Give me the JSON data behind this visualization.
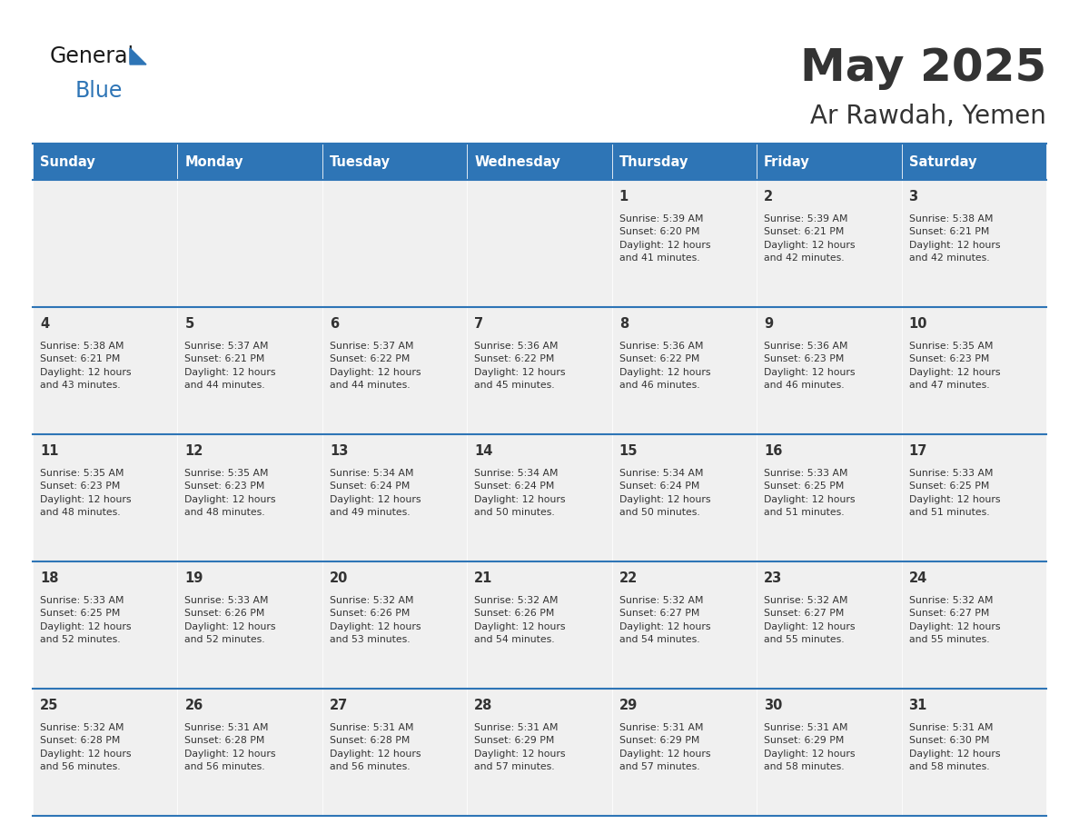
{
  "title": "May 2025",
  "subtitle": "Ar Rawdah, Yemen",
  "header_color": "#2E75B6",
  "header_text_color": "#FFFFFF",
  "cell_bg_color": "#F0F0F0",
  "text_color": "#333333",
  "day_headers": [
    "Sunday",
    "Monday",
    "Tuesday",
    "Wednesday",
    "Thursday",
    "Friday",
    "Saturday"
  ],
  "weeks": [
    [
      {
        "day": "",
        "info": ""
      },
      {
        "day": "",
        "info": ""
      },
      {
        "day": "",
        "info": ""
      },
      {
        "day": "",
        "info": ""
      },
      {
        "day": "1",
        "info": "Sunrise: 5:39 AM\nSunset: 6:20 PM\nDaylight: 12 hours\nand 41 minutes."
      },
      {
        "day": "2",
        "info": "Sunrise: 5:39 AM\nSunset: 6:21 PM\nDaylight: 12 hours\nand 42 minutes."
      },
      {
        "day": "3",
        "info": "Sunrise: 5:38 AM\nSunset: 6:21 PM\nDaylight: 12 hours\nand 42 minutes."
      }
    ],
    [
      {
        "day": "4",
        "info": "Sunrise: 5:38 AM\nSunset: 6:21 PM\nDaylight: 12 hours\nand 43 minutes."
      },
      {
        "day": "5",
        "info": "Sunrise: 5:37 AM\nSunset: 6:21 PM\nDaylight: 12 hours\nand 44 minutes."
      },
      {
        "day": "6",
        "info": "Sunrise: 5:37 AM\nSunset: 6:22 PM\nDaylight: 12 hours\nand 44 minutes."
      },
      {
        "day": "7",
        "info": "Sunrise: 5:36 AM\nSunset: 6:22 PM\nDaylight: 12 hours\nand 45 minutes."
      },
      {
        "day": "8",
        "info": "Sunrise: 5:36 AM\nSunset: 6:22 PM\nDaylight: 12 hours\nand 46 minutes."
      },
      {
        "day": "9",
        "info": "Sunrise: 5:36 AM\nSunset: 6:23 PM\nDaylight: 12 hours\nand 46 minutes."
      },
      {
        "day": "10",
        "info": "Sunrise: 5:35 AM\nSunset: 6:23 PM\nDaylight: 12 hours\nand 47 minutes."
      }
    ],
    [
      {
        "day": "11",
        "info": "Sunrise: 5:35 AM\nSunset: 6:23 PM\nDaylight: 12 hours\nand 48 minutes."
      },
      {
        "day": "12",
        "info": "Sunrise: 5:35 AM\nSunset: 6:23 PM\nDaylight: 12 hours\nand 48 minutes."
      },
      {
        "day": "13",
        "info": "Sunrise: 5:34 AM\nSunset: 6:24 PM\nDaylight: 12 hours\nand 49 minutes."
      },
      {
        "day": "14",
        "info": "Sunrise: 5:34 AM\nSunset: 6:24 PM\nDaylight: 12 hours\nand 50 minutes."
      },
      {
        "day": "15",
        "info": "Sunrise: 5:34 AM\nSunset: 6:24 PM\nDaylight: 12 hours\nand 50 minutes."
      },
      {
        "day": "16",
        "info": "Sunrise: 5:33 AM\nSunset: 6:25 PM\nDaylight: 12 hours\nand 51 minutes."
      },
      {
        "day": "17",
        "info": "Sunrise: 5:33 AM\nSunset: 6:25 PM\nDaylight: 12 hours\nand 51 minutes."
      }
    ],
    [
      {
        "day": "18",
        "info": "Sunrise: 5:33 AM\nSunset: 6:25 PM\nDaylight: 12 hours\nand 52 minutes."
      },
      {
        "day": "19",
        "info": "Sunrise: 5:33 AM\nSunset: 6:26 PM\nDaylight: 12 hours\nand 52 minutes."
      },
      {
        "day": "20",
        "info": "Sunrise: 5:32 AM\nSunset: 6:26 PM\nDaylight: 12 hours\nand 53 minutes."
      },
      {
        "day": "21",
        "info": "Sunrise: 5:32 AM\nSunset: 6:26 PM\nDaylight: 12 hours\nand 54 minutes."
      },
      {
        "day": "22",
        "info": "Sunrise: 5:32 AM\nSunset: 6:27 PM\nDaylight: 12 hours\nand 54 minutes."
      },
      {
        "day": "23",
        "info": "Sunrise: 5:32 AM\nSunset: 6:27 PM\nDaylight: 12 hours\nand 55 minutes."
      },
      {
        "day": "24",
        "info": "Sunrise: 5:32 AM\nSunset: 6:27 PM\nDaylight: 12 hours\nand 55 minutes."
      }
    ],
    [
      {
        "day": "25",
        "info": "Sunrise: 5:32 AM\nSunset: 6:28 PM\nDaylight: 12 hours\nand 56 minutes."
      },
      {
        "day": "26",
        "info": "Sunrise: 5:31 AM\nSunset: 6:28 PM\nDaylight: 12 hours\nand 56 minutes."
      },
      {
        "day": "27",
        "info": "Sunrise: 5:31 AM\nSunset: 6:28 PM\nDaylight: 12 hours\nand 56 minutes."
      },
      {
        "day": "28",
        "info": "Sunrise: 5:31 AM\nSunset: 6:29 PM\nDaylight: 12 hours\nand 57 minutes."
      },
      {
        "day": "29",
        "info": "Sunrise: 5:31 AM\nSunset: 6:29 PM\nDaylight: 12 hours\nand 57 minutes."
      },
      {
        "day": "30",
        "info": "Sunrise: 5:31 AM\nSunset: 6:29 PM\nDaylight: 12 hours\nand 58 minutes."
      },
      {
        "day": "31",
        "info": "Sunrise: 5:31 AM\nSunset: 6:30 PM\nDaylight: 12 hours\nand 58 minutes."
      }
    ]
  ],
  "logo_blue_color": "#2E75B6",
  "line_color": "#2E75B6",
  "fig_width": 11.88,
  "fig_height": 9.18,
  "dpi": 100
}
